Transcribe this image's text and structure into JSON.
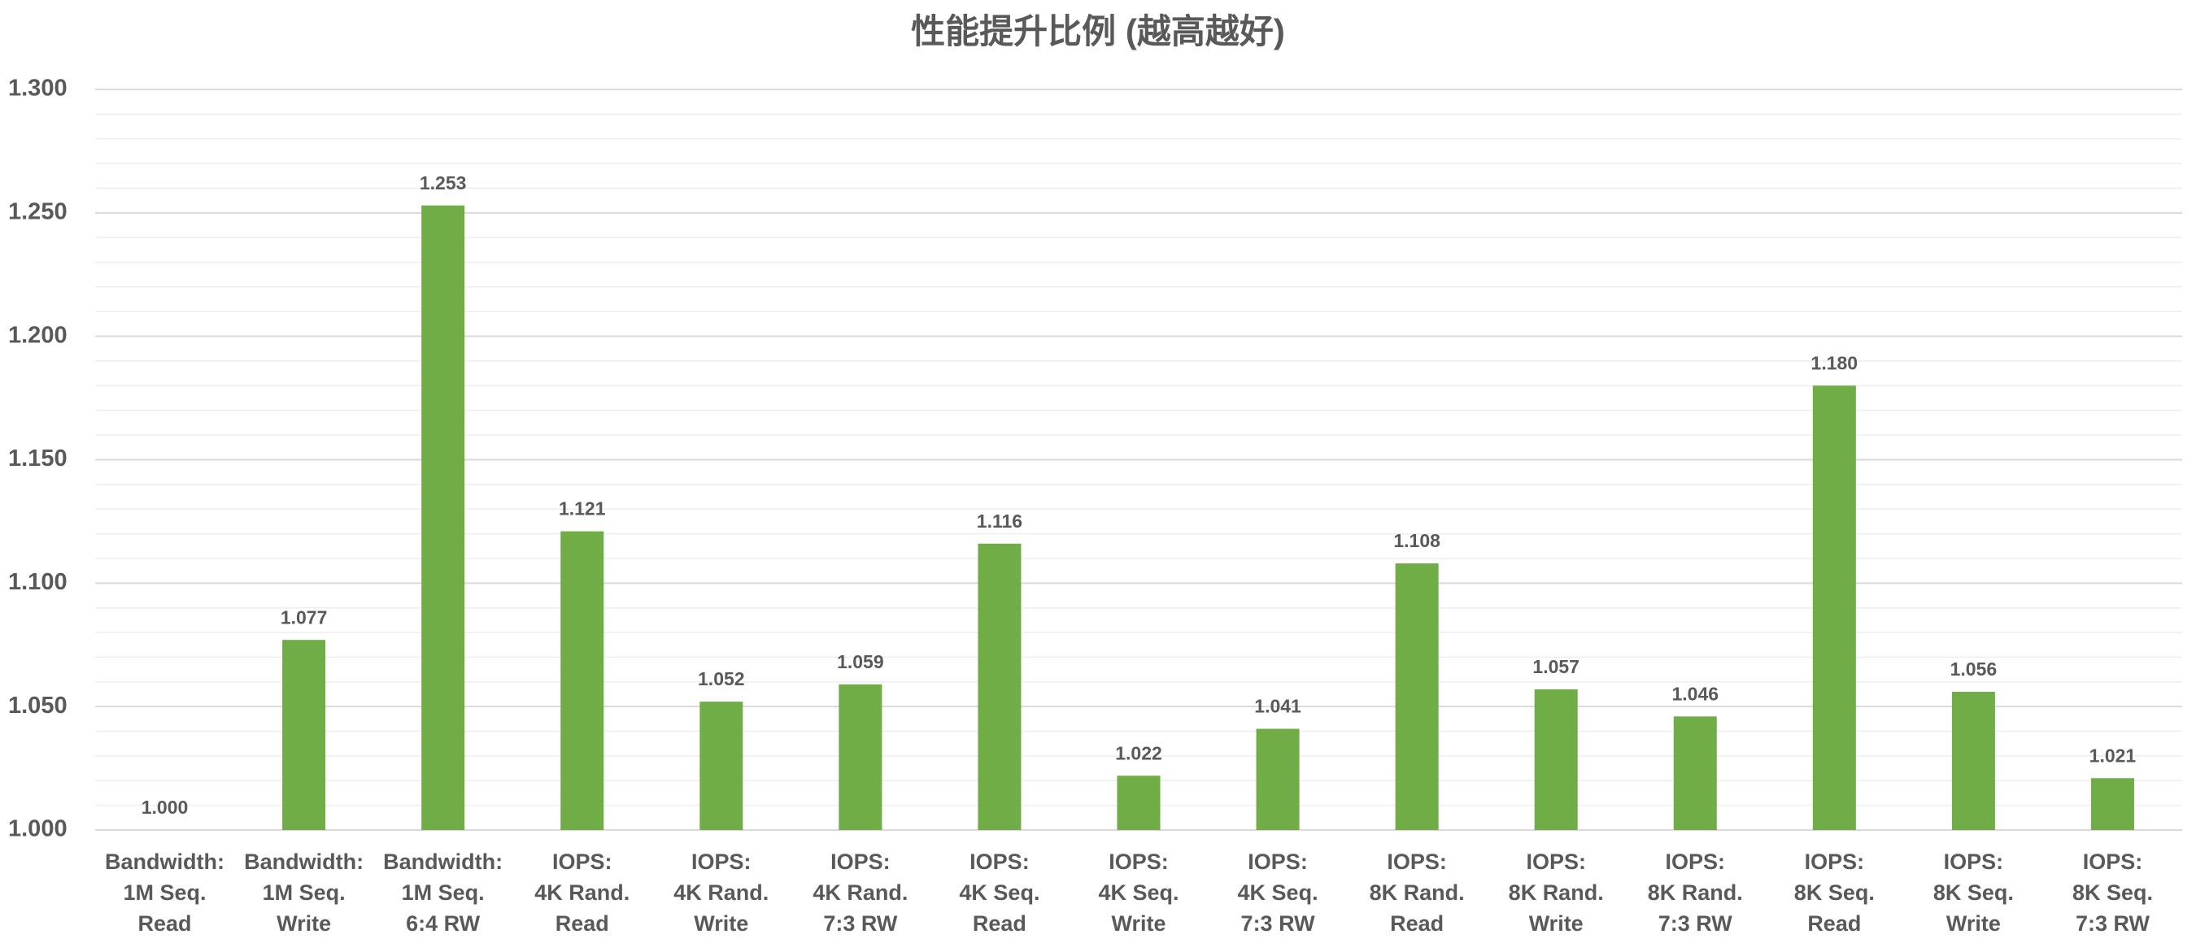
{
  "chart_data": {
    "type": "bar",
    "title": "性能提升比例 (越高越好)",
    "categories": [
      [
        "Bandwidth:",
        "1M Seq.",
        "Read"
      ],
      [
        "Bandwidth:",
        "1M Seq.",
        "Write"
      ],
      [
        "Bandwidth:",
        "1M Seq.",
        "6:4 RW"
      ],
      [
        "IOPS:",
        "4K Rand.",
        "Read"
      ],
      [
        "IOPS:",
        "4K Rand.",
        "Write"
      ],
      [
        "IOPS:",
        "4K Rand.",
        "7:3 RW"
      ],
      [
        "IOPS:",
        "4K Seq.",
        "Read"
      ],
      [
        "IOPS:",
        "4K Seq.",
        "Write"
      ],
      [
        "IOPS:",
        "4K Seq.",
        "7:3 RW"
      ],
      [
        "IOPS:",
        "8K Rand.",
        "Read"
      ],
      [
        "IOPS:",
        "8K Rand.",
        "Write"
      ],
      [
        "IOPS:",
        "8K Rand.",
        "7:3 RW"
      ],
      [
        "IOPS:",
        "8K Seq.",
        "Read"
      ],
      [
        "IOPS:",
        "8K Seq.",
        "Write"
      ],
      [
        "IOPS:",
        "8K Seq.",
        "7:3 RW"
      ]
    ],
    "values": [
      1.0,
      1.077,
      1.253,
      1.121,
      1.052,
      1.059,
      1.116,
      1.022,
      1.041,
      1.108,
      1.057,
      1.046,
      1.18,
      1.056,
      1.021
    ],
    "value_labels": [
      "1.000",
      "1.077",
      "1.253",
      "1.121",
      "1.052",
      "1.059",
      "1.116",
      "1.022",
      "1.041",
      "1.108",
      "1.057",
      "1.046",
      "1.180",
      "1.056",
      "1.021"
    ],
    "color": "#70ad47",
    "ylim": [
      1.0,
      1.3
    ],
    "yticks": [
      {
        "value": 1.0,
        "label": "1.000"
      },
      {
        "value": 1.05,
        "label": "1.050"
      },
      {
        "value": 1.1,
        "label": "1.100"
      },
      {
        "value": 1.15,
        "label": "1.150"
      },
      {
        "value": 1.2,
        "label": "1.200"
      },
      {
        "value": 1.25,
        "label": "1.250"
      },
      {
        "value": 1.3,
        "label": "1.300"
      }
    ],
    "minor_yticks": [
      1.01,
      1.02,
      1.03,
      1.04,
      1.06,
      1.07,
      1.08,
      1.09,
      1.11,
      1.12,
      1.13,
      1.14,
      1.16,
      1.17,
      1.18,
      1.19,
      1.21,
      1.22,
      1.23,
      1.24,
      1.26,
      1.27,
      1.28,
      1.29
    ],
    "grid": true
  }
}
